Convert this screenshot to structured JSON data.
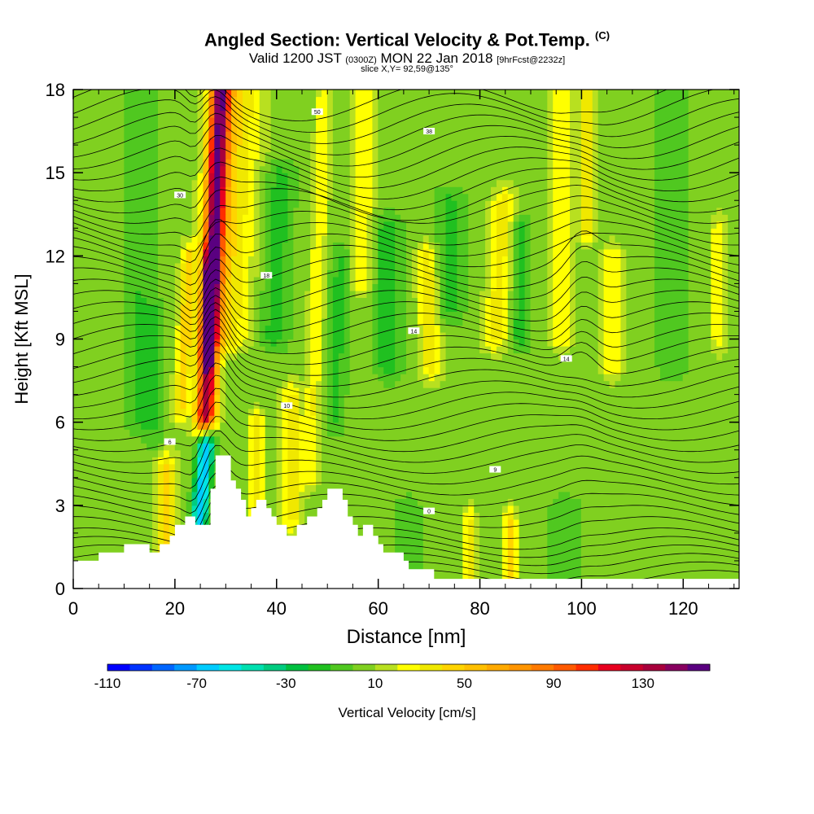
{
  "title": {
    "main": "Angled Section: Vertical Velocity & Pot.Temp.",
    "unit": "(C)",
    "valid_prefix": "Valid 1200 JST",
    "valid_utc": "(0300Z)",
    "valid_date": "MON 22 Jan 2018",
    "forecast": "[9hrFcst@2232z]",
    "slice": "slice X,Y= 92,59@135°"
  },
  "chart_data": {
    "type": "heatmap",
    "xlabel": "Distance [nm]",
    "ylabel": "Height [Kft MSL]",
    "xlim": [
      0,
      131
    ],
    "ylim": [
      0,
      18
    ],
    "x_ticks": [
      0,
      20,
      40,
      60,
      80,
      100,
      120
    ],
    "y_ticks": [
      0,
      3,
      6,
      9,
      12,
      15,
      18
    ],
    "terrain_kft": [
      [
        0,
        1
      ],
      [
        5,
        1
      ],
      [
        5,
        1.3
      ],
      [
        10,
        1.3
      ],
      [
        10,
        1.6
      ],
      [
        15,
        1.6
      ],
      [
        15,
        1.3
      ],
      [
        17,
        1.3
      ],
      [
        17,
        1.6
      ],
      [
        19,
        1.6
      ],
      [
        19,
        1.9
      ],
      [
        20,
        1.9
      ],
      [
        20,
        2.3
      ],
      [
        22,
        2.3
      ],
      [
        22,
        2.6
      ],
      [
        24,
        2.6
      ],
      [
        24,
        2.3
      ],
      [
        27,
        2.3
      ],
      [
        27,
        3.6
      ],
      [
        28,
        3.6
      ],
      [
        28,
        4.8
      ],
      [
        31,
        4.8
      ],
      [
        31,
        3.9
      ],
      [
        32,
        3.9
      ],
      [
        32,
        3.6
      ],
      [
        33,
        3.6
      ],
      [
        33,
        3.2
      ],
      [
        34,
        3.2
      ],
      [
        34,
        2.6
      ],
      [
        35,
        2.6
      ],
      [
        35,
        2.9
      ],
      [
        36,
        2.9
      ],
      [
        36,
        3.2
      ],
      [
        38,
        3.2
      ],
      [
        38,
        2.9
      ],
      [
        39,
        2.9
      ],
      [
        39,
        2.6
      ],
      [
        40,
        2.6
      ],
      [
        40,
        2.3
      ],
      [
        42,
        2.3
      ],
      [
        42,
        1.9
      ],
      [
        44,
        1.9
      ],
      [
        44,
        2.3
      ],
      [
        46,
        2.3
      ],
      [
        46,
        2.6
      ],
      [
        48,
        2.6
      ],
      [
        48,
        2.9
      ],
      [
        49,
        2.9
      ],
      [
        49,
        3.2
      ],
      [
        50,
        3.2
      ],
      [
        50,
        3.6
      ],
      [
        53,
        3.6
      ],
      [
        53,
        3.2
      ],
      [
        54,
        3.2
      ],
      [
        54,
        2.6
      ],
      [
        55,
        2.6
      ],
      [
        55,
        2.3
      ],
      [
        56,
        2.3
      ],
      [
        56,
        1.9
      ],
      [
        57,
        1.9
      ],
      [
        57,
        2.3
      ],
      [
        59,
        2.3
      ],
      [
        59,
        1.9
      ],
      [
        60,
        1.9
      ],
      [
        60,
        1.6
      ],
      [
        61,
        1.6
      ],
      [
        61,
        1.3
      ],
      [
        65,
        1.3
      ],
      [
        65,
        1.0
      ],
      [
        66,
        1.0
      ],
      [
        66,
        0.7
      ],
      [
        71,
        0.7
      ],
      [
        71,
        0.35
      ],
      [
        131,
        0.35
      ]
    ],
    "colorbar": {
      "label": "Vertical Velocity [cm/s]",
      "tick_labels": [
        "-110",
        "-70",
        "-30",
        "10",
        "50",
        "90",
        "130"
      ],
      "levels": [
        -110,
        -100,
        -90,
        -80,
        -70,
        -60,
        -50,
        -40,
        -30,
        -20,
        -10,
        0,
        10,
        20,
        30,
        40,
        50,
        60,
        70,
        80,
        90,
        100,
        110,
        120,
        130,
        140,
        150
      ],
      "colors": [
        "#0000ff",
        "#0033ff",
        "#0066ff",
        "#0099ff",
        "#00ccff",
        "#00e5e5",
        "#00e0b0",
        "#00cc80",
        "#00c040",
        "#20c020",
        "#50c820",
        "#80d020",
        "#b8e020",
        "#ffff00",
        "#f0e800",
        "#ffd400",
        "#ffc000",
        "#ffaa00",
        "#ff9500",
        "#ff7b00",
        "#ff5a00",
        "#ff2d00",
        "#e8001f",
        "#c8002c",
        "#a8003c",
        "#880060",
        "#5a0080"
      ]
    },
    "vv_field": {
      "background": 5,
      "features": [
        {
          "x": 27.5,
          "w": 2.0,
          "y0": 6,
          "y1": 18,
          "v": 130,
          "tilt": 0.25
        },
        {
          "x": 26.8,
          "w": 0.9,
          "y0": 8.5,
          "y1": 12,
          "v": 160,
          "tilt": 0.25
        },
        {
          "x": 25.5,
          "w": 1.6,
          "y0": 2.4,
          "y1": 5.5,
          "v": -75,
          "tilt": 0.5
        },
        {
          "x": 31,
          "w": 5,
          "y0": 9,
          "y1": 18,
          "v": 35,
          "tilt": 0.3
        },
        {
          "x": 22,
          "w": 1.5,
          "y0": 6.5,
          "y1": 12,
          "v": 40,
          "tilt": 0.3
        },
        {
          "x": 18,
          "w": 2.5,
          "y0": 1.4,
          "y1": 4.5,
          "v": 40,
          "tilt": 0
        },
        {
          "x": 36,
          "w": 1.5,
          "y0": 2.5,
          "y1": 6,
          "v": 35,
          "tilt": 0
        },
        {
          "x": 43,
          "w": 2.0,
          "y0": 2.5,
          "y1": 7,
          "v": 30,
          "tilt": 0
        },
        {
          "x": 48,
          "w": 1.5,
          "y0": 4,
          "y1": 18,
          "v": 25,
          "tilt": 0.2
        },
        {
          "x": 57,
          "w": 2.0,
          "y0": 11,
          "y1": 18,
          "v": 25,
          "tilt": 0.1
        },
        {
          "x": 70,
          "w": 2.0,
          "y0": 8,
          "y1": 12,
          "v": 35,
          "tilt": -0.2
        },
        {
          "x": 84,
          "w": 2.5,
          "y0": 9,
          "y1": 14,
          "v": 30,
          "tilt": 0.3
        },
        {
          "x": 96,
          "w": 2.0,
          "y0": 9,
          "y1": 18,
          "v": 25,
          "tilt": 0
        },
        {
          "x": 101,
          "w": 1.5,
          "y0": 13,
          "y1": 18,
          "v": 35,
          "tilt": 0
        },
        {
          "x": 106,
          "w": 2.0,
          "y0": 8,
          "y1": 12,
          "v": 25,
          "tilt": 0
        },
        {
          "x": 127,
          "w": 1.5,
          "y0": 9,
          "y1": 13,
          "v": 25,
          "tilt": 0
        },
        {
          "x": 86,
          "w": 1.2,
          "y0": 0.4,
          "y1": 2.5,
          "v": 40,
          "tilt": 0
        },
        {
          "x": 78,
          "w": 1.2,
          "y0": 0.4,
          "y1": 2.5,
          "v": 30,
          "tilt": 0
        },
        {
          "x": 13,
          "w": 3.0,
          "y0": 6,
          "y1": 18,
          "v": -15,
          "tilt": 0
        },
        {
          "x": 16,
          "w": 2.0,
          "y0": 1.5,
          "y1": 10,
          "v": -12,
          "tilt": 0
        },
        {
          "x": 40,
          "w": 3.0,
          "y0": 9,
          "y1": 15,
          "v": -20,
          "tilt": 0.2
        },
        {
          "x": 52,
          "w": 2.0,
          "y0": 6,
          "y1": 12,
          "v": -18,
          "tilt": 0.2
        },
        {
          "x": 62,
          "w": 2.5,
          "y0": 8,
          "y1": 13,
          "v": -25,
          "tilt": 0
        },
        {
          "x": 74,
          "w": 3.0,
          "y0": 10,
          "y1": 14,
          "v": -18,
          "tilt": 0
        },
        {
          "x": 88,
          "w": 2.0,
          "y0": 9,
          "y1": 13,
          "v": -22,
          "tilt": 0
        },
        {
          "x": 118,
          "w": 3.0,
          "y0": 8,
          "y1": 18,
          "v": -15,
          "tilt": 0
        },
        {
          "x": 97,
          "w": 4.0,
          "y0": 0.4,
          "y1": 3,
          "v": -10,
          "tilt": 0
        },
        {
          "x": 66,
          "w": 3.0,
          "y0": 0.6,
          "y1": 3,
          "v": -10,
          "tilt": 0
        }
      ]
    },
    "theta_contours": {
      "levels_kft": [
        0.3,
        0.6,
        0.9,
        1.2,
        1.5,
        1.8,
        2.2,
        2.6,
        3.0,
        3.4,
        3.8,
        4.2,
        4.6,
        5.0,
        5.4,
        5.8,
        6.2,
        6.6,
        7.0,
        7.4,
        7.8,
        8.2,
        8.6,
        9.0,
        9.4,
        9.8,
        10.2,
        10.6,
        11.0,
        11.4,
        11.8,
        12.2,
        12.6,
        13.0,
        13.4,
        13.8,
        14.2,
        14.6,
        15.0,
        15.4,
        15.8,
        16.2,
        16.6,
        17.0,
        17.4,
        17.8
      ],
      "labels": [
        {
          "x": 48,
          "y": 17.2,
          "text": "50"
        },
        {
          "x": 70,
          "y": 16.5,
          "text": "38"
        },
        {
          "x": 21,
          "y": 14.2,
          "text": "30"
        },
        {
          "x": 38,
          "y": 11.3,
          "text": "18"
        },
        {
          "x": 67,
          "y": 9.3,
          "text": "14"
        },
        {
          "x": 97,
          "y": 8.3,
          "text": "14"
        },
        {
          "x": 83,
          "y": 4.3,
          "text": "9"
        },
        {
          "x": 70,
          "y": 2.8,
          "text": "0"
        },
        {
          "x": 42,
          "y": 6.6,
          "text": "10"
        },
        {
          "x": 19,
          "y": 5.3,
          "text": "6"
        }
      ]
    }
  }
}
